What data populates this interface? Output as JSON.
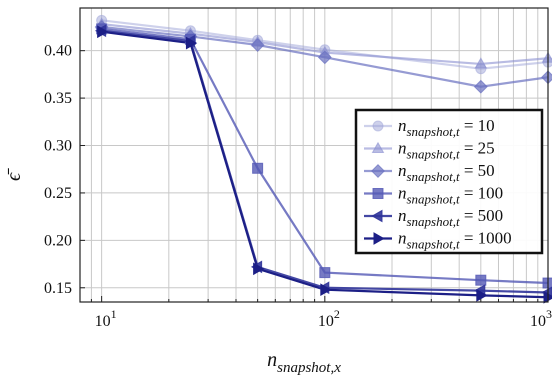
{
  "chart_data": {
    "type": "line",
    "xscale": "log",
    "xlim": [
      8,
      1000
    ],
    "ylim": [
      0.135,
      0.445
    ],
    "xticks": [
      10,
      100,
      1000
    ],
    "xtick_labels": [
      {
        "base": "10",
        "exp": "1"
      },
      {
        "base": "10",
        "exp": "2"
      },
      {
        "base": "10",
        "exp": "3"
      }
    ],
    "yticks": [
      0.15,
      0.2,
      0.25,
      0.3,
      0.35,
      0.4
    ],
    "ytick_labels": [
      "0.15",
      "0.20",
      "0.25",
      "0.30",
      "0.35",
      "0.40"
    ],
    "xlabel": {
      "main": "n",
      "sub": "snapshot,x"
    },
    "ylabel": "ϵ̄",
    "grid": "both",
    "legend": {
      "placement": "right",
      "prefix": "n",
      "sub": "snapshot,t",
      "eq": " = "
    },
    "x": [
      10,
      25,
      50,
      100,
      500,
      1000
    ],
    "series": [
      {
        "name": "10",
        "marker": "circle",
        "color": "#9ea3d8",
        "opacity": 0.5,
        "values": [
          0.432,
          0.421,
          0.411,
          0.401,
          0.381,
          0.388
        ]
      },
      {
        "name": "25",
        "marker": "triangle",
        "color": "#8a8fd0",
        "opacity": 0.6,
        "values": [
          0.428,
          0.418,
          0.409,
          0.398,
          0.386,
          0.392
        ]
      },
      {
        "name": "50",
        "marker": "diamond",
        "color": "#6a70c0",
        "opacity": 0.7,
        "values": [
          0.425,
          0.415,
          0.406,
          0.393,
          0.362,
          0.372
        ]
      },
      {
        "name": "100",
        "marker": "square",
        "color": "#5459b5",
        "opacity": 0.8,
        "values": [
          0.423,
          0.412,
          0.276,
          0.166,
          0.158,
          0.155
        ]
      },
      {
        "name": "500",
        "marker": "triangle-left",
        "color": "#30349a",
        "opacity": 0.9,
        "values": [
          0.421,
          0.41,
          0.172,
          0.15,
          0.147,
          0.145
        ]
      },
      {
        "name": "1000",
        "marker": "triangle-right",
        "color": "#1c1f86",
        "opacity": 1.0,
        "values": [
          0.42,
          0.408,
          0.17,
          0.148,
          0.142,
          0.14
        ]
      }
    ]
  }
}
